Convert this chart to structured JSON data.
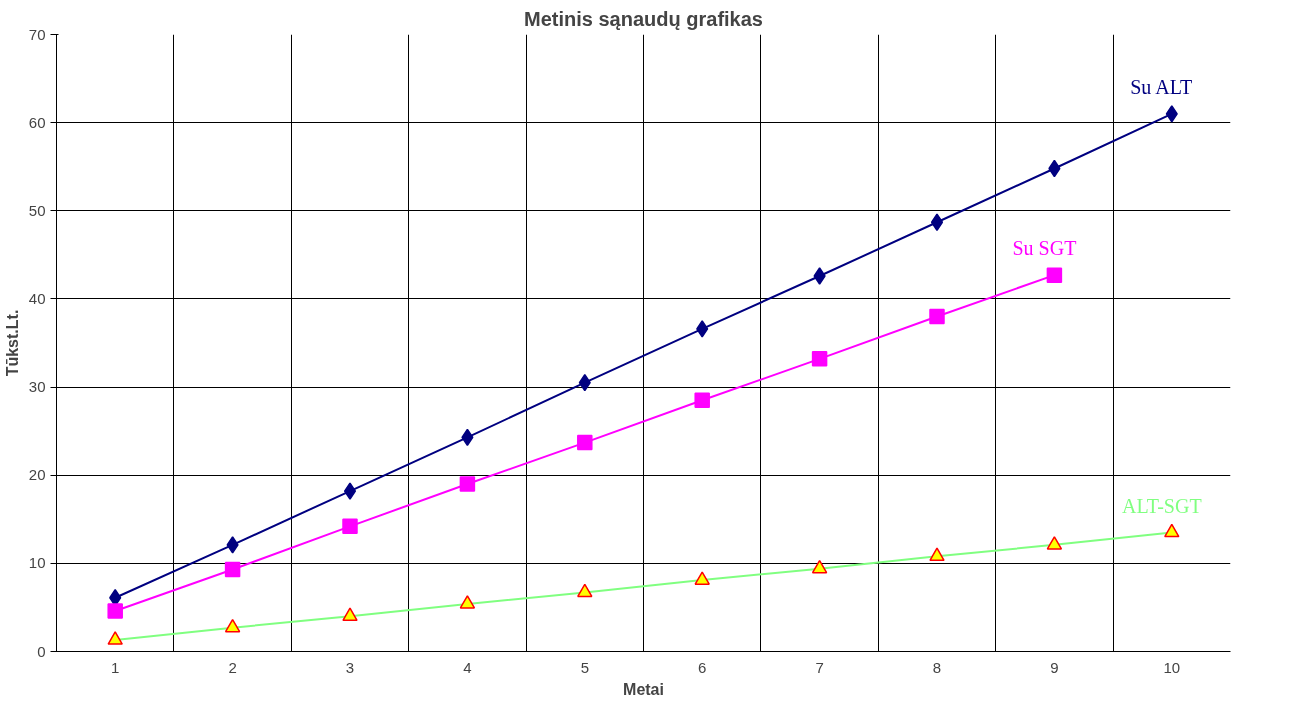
{
  "chart_data": {
    "type": "line",
    "title": "Metinis sąnaudų grafikas",
    "xlabel": "Metai",
    "ylabel": "Tūkst.Lt.",
    "categories": [
      "1",
      "2",
      "3",
      "4",
      "5",
      "6",
      "7",
      "8",
      "9",
      "10"
    ],
    "series": [
      {
        "name": "Su ALT",
        "color": "#000080",
        "marker": "diamond",
        "values": [
          6.1,
          12.1,
          18.2,
          24.3,
          30.5,
          36.6,
          42.6,
          48.7,
          54.8,
          61.0
        ]
      },
      {
        "name": "Su SGT",
        "color": "#ff00ff",
        "marker": "square",
        "values": [
          4.6,
          9.3,
          14.2,
          19.0,
          23.7,
          28.5,
          33.2,
          38.0,
          42.7,
          null
        ]
      },
      {
        "name": "ALT-SGT",
        "color": "#80ff80",
        "marker": "triangle",
        "values": [
          1.3,
          2.7,
          4.0,
          5.4,
          6.7,
          8.1,
          9.4,
          10.8,
          12.1,
          13.5
        ]
      }
    ],
    "ylim": [
      0,
      70
    ],
    "yticks": [
      0,
      10,
      20,
      30,
      40,
      50,
      60,
      70
    ],
    "grid": true
  }
}
